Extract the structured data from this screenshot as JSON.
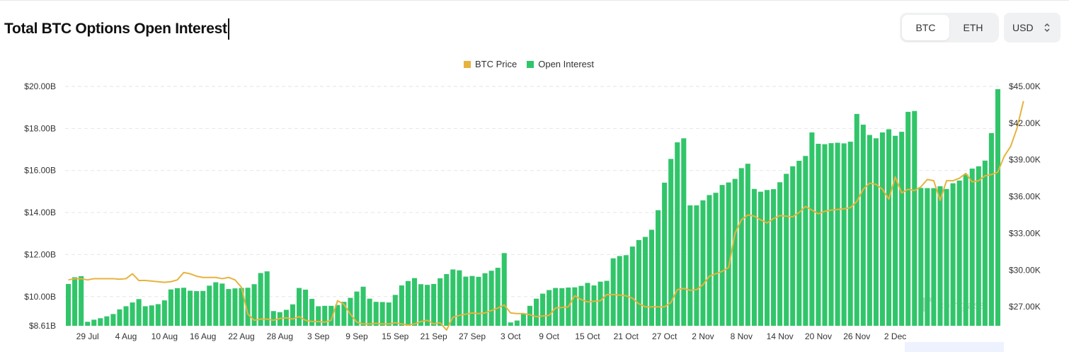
{
  "header": {
    "title": "Total BTC Options Open Interest",
    "coin_tabs": [
      {
        "label": "BTC",
        "active": true
      },
      {
        "label": "ETH",
        "active": false
      }
    ],
    "currency": {
      "value": "USD",
      "icon": "up-down-chevron-icon"
    }
  },
  "watermark": {
    "text": "coinglass",
    "icon": "coinglass-logo-icon"
  },
  "colors": {
    "open_interest": "#31c56a",
    "btc_price": "#e6b33e",
    "grid": "#e6e6e6"
  },
  "chart_data": {
    "type": "bar",
    "title": "Total BTC Options Open Interest",
    "legend_position": "top-center",
    "grid": true,
    "legend": [
      "BTC Price",
      "Open Interest"
    ],
    "x_tick_labels": [
      "29 Jul",
      "4 Aug",
      "10 Aug",
      "16 Aug",
      "22 Aug",
      "28 Aug",
      "3 Sep",
      "9 Sep",
      "15 Sep",
      "21 Sep",
      "27 Sep",
      "3 Oct",
      "9 Oct",
      "15 Oct",
      "21 Oct",
      "27 Oct",
      "2 Nov",
      "8 Nov",
      "14 Nov",
      "20 Nov",
      "26 Nov",
      "2 Dec"
    ],
    "left_axis": {
      "label": "Open Interest",
      "ticks": [
        "$8.61B",
        "$10.00B",
        "$12.00B",
        "$14.00B",
        "$16.00B",
        "$18.00B",
        "$20.00B"
      ],
      "tick_values": [
        8.61,
        10,
        12,
        14,
        16,
        18,
        20
      ],
      "range": [
        8.61,
        20
      ]
    },
    "right_axis": {
      "label": "BTC Price",
      "ticks": [
        "$27.00K",
        "$30.00K",
        "$33.00K",
        "$36.00K",
        "$39.00K",
        "$42.00K",
        "$45.00K"
      ],
      "tick_values": [
        27,
        30,
        33,
        36,
        39,
        42,
        45
      ],
      "range": [
        25.45,
        45
      ]
    },
    "series": [
      {
        "name": "Open Interest",
        "type": "bar",
        "axis": "left",
        "unit": "USD billions",
        "values": [
          10.6,
          10.92,
          10.97,
          8.8,
          8.9,
          8.97,
          9.06,
          9.17,
          9.39,
          9.54,
          9.72,
          9.88,
          9.54,
          9.58,
          9.64,
          9.82,
          10.34,
          10.4,
          10.42,
          10.28,
          10.26,
          10.27,
          10.52,
          10.68,
          10.62,
          10.36,
          10.39,
          10.41,
          10.42,
          10.59,
          11.12,
          11.2,
          9.31,
          9.26,
          9.37,
          9.63,
          10.41,
          10.33,
          9.89,
          9.54,
          9.56,
          9.56,
          9.6,
          9.75,
          9.94,
          10.24,
          10.47,
          9.9,
          9.75,
          9.74,
          9.72,
          10.08,
          10.53,
          10.74,
          10.88,
          10.59,
          10.56,
          10.6,
          10.87,
          11.07,
          11.29,
          11.25,
          10.95,
          10.98,
          10.94,
          11.11,
          11.23,
          11.37,
          12.07,
          8.77,
          8.86,
          9.19,
          9.56,
          9.9,
          10.14,
          10.31,
          10.41,
          10.4,
          10.43,
          10.44,
          10.51,
          10.65,
          10.53,
          10.71,
          10.75,
          11.82,
          11.93,
          11.97,
          12.38,
          12.69,
          12.84,
          13.18,
          14.11,
          15.42,
          16.55,
          17.34,
          17.53,
          14.34,
          14.34,
          14.58,
          14.83,
          14.94,
          15.31,
          15.43,
          15.6,
          16.11,
          16.32,
          15.12,
          14.99,
          15.07,
          15.11,
          15.44,
          15.84,
          16.2,
          16.46,
          16.69,
          17.81,
          17.27,
          17.25,
          17.3,
          17.32,
          17.29,
          17.37,
          18.69,
          18.18,
          17.69,
          17.53,
          17.81,
          17.96,
          17.65,
          17.84,
          18.79,
          18.83,
          15.17,
          15.16,
          15.16,
          15.25,
          15.12,
          15.39,
          15.52,
          15.81,
          16.09,
          16.2,
          16.47,
          17.78,
          19.87
        ]
      },
      {
        "name": "BTC Price",
        "type": "line",
        "axis": "right",
        "unit": "USD thousands",
        "values": [
          29.2,
          29.3,
          29.3,
          29.2,
          29.3,
          29.3,
          29.3,
          29.3,
          29.25,
          29.3,
          29.7,
          29.15,
          29.15,
          29.1,
          29.05,
          29.0,
          29.05,
          29.2,
          29.8,
          29.7,
          29.5,
          29.4,
          29.4,
          29.4,
          29.3,
          29.4,
          29.2,
          28.6,
          26.4,
          25.9,
          26.0,
          26.0,
          25.9,
          26.05,
          26.1,
          26.0,
          26.2,
          25.9,
          25.8,
          25.8,
          25.75,
          25.9,
          27.5,
          27.2,
          26.4,
          25.75,
          25.6,
          25.6,
          25.65,
          25.6,
          25.6,
          25.7,
          25.6,
          25.5,
          25.6,
          25.8,
          25.9,
          25.6,
          25.7,
          25.1,
          26.15,
          26.3,
          26.4,
          26.5,
          26.45,
          26.5,
          26.7,
          26.9,
          27.15,
          26.5,
          26.45,
          26.45,
          26.35,
          26.2,
          26.25,
          26.3,
          26.9,
          26.95,
          27.0,
          27.9,
          27.6,
          27.4,
          27.45,
          27.5,
          28.0,
          28.0,
          27.95,
          27.9,
          27.7,
          27.25,
          27.0,
          27.0,
          27.0,
          27.0,
          27.35,
          28.4,
          28.5,
          28.35,
          28.4,
          28.8,
          29.5,
          29.7,
          29.9,
          30.2,
          33.0,
          34.1,
          34.5,
          34.4,
          34.1,
          33.85,
          34.2,
          34.45,
          34.4,
          34.35,
          34.7,
          35.2,
          34.9,
          34.6,
          34.8,
          34.9,
          34.95,
          35.0,
          35.1,
          35.6,
          36.6,
          37.1,
          37.0,
          36.6,
          35.8,
          37.6,
          36.3,
          36.6,
          36.5,
          36.8,
          37.4,
          37.3,
          35.7,
          37.3,
          37.3,
          37.5,
          37.9,
          37.2,
          37.3,
          37.7,
          37.8,
          38.0,
          39.3,
          40.1,
          41.6,
          43.8
        ]
      }
    ]
  }
}
